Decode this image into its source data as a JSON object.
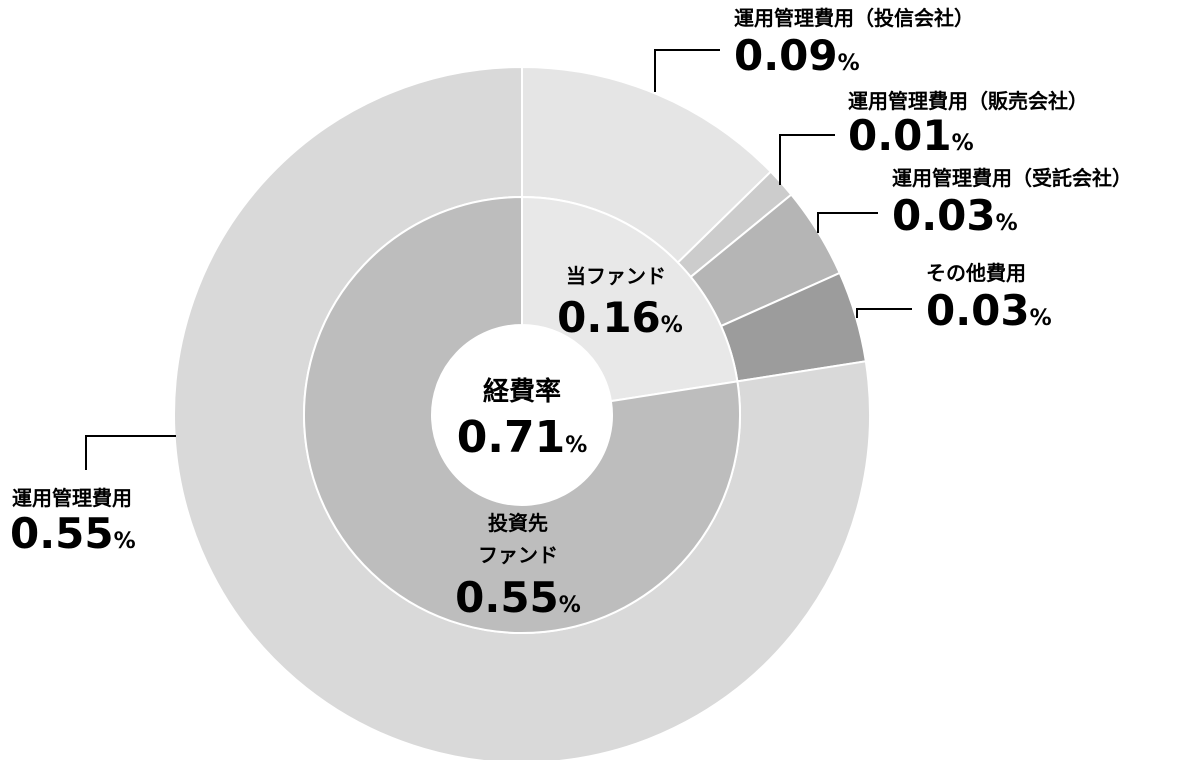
{
  "chart_data": {
    "type": "pie",
    "subtype": "nested-donut",
    "center": {
      "label": "経費率",
      "value": "0.71",
      "unit": "%"
    },
    "inner_ring": [
      {
        "name": "当ファンド",
        "value": 0.16,
        "display": "0.16",
        "unit": "%",
        "color": "#e8e8e8"
      },
      {
        "name": "投資先\nファンド",
        "value": 0.55,
        "display": "0.55",
        "unit": "%",
        "color": "#bdbdbd"
      }
    ],
    "outer_ring": [
      {
        "name": "運用管理費用（投信会社）",
        "value": 0.09,
        "display": "0.09",
        "unit": "%",
        "color": "#e5e5e5"
      },
      {
        "name": "運用管理費用（販売会社）",
        "value": 0.01,
        "display": "0.01",
        "unit": "%",
        "color": "#cccccc"
      },
      {
        "name": "運用管理費用（受託会社）",
        "value": 0.03,
        "display": "0.03",
        "unit": "%",
        "color": "#b5b5b5"
      },
      {
        "name": "その他費用",
        "value": 0.03,
        "display": "0.03",
        "unit": "%",
        "color": "#9c9c9c"
      },
      {
        "name": "運用管理費用",
        "value": 0.55,
        "display": "0.55",
        "unit": "%",
        "color": "#d9d9d9"
      }
    ]
  }
}
